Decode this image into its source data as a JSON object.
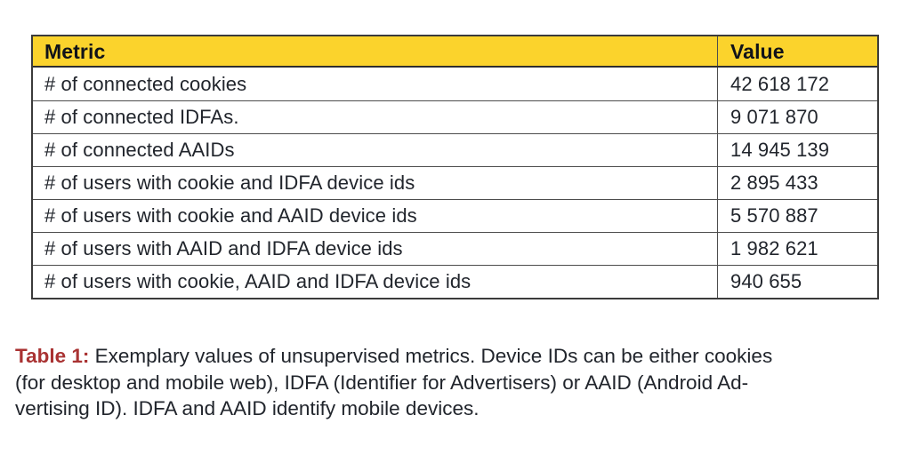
{
  "colors": {
    "header_bg": "#fbd32c",
    "caption_label": "#a93232",
    "body_text": "#21252c",
    "table_border": "#3b3b3b",
    "row_divider": "#4d4d4d"
  },
  "table": {
    "headers": [
      "Metric",
      "Value"
    ],
    "rows": [
      {
        "metric": "# of connected cookies",
        "value": "42 618 172"
      },
      {
        "metric": "# of connected IDFAs.",
        "value": "9 071 870"
      },
      {
        "metric": "# of connected AAIDs",
        "value": "14 945 139"
      },
      {
        "metric": "# of users with cookie and IDFA device ids",
        "value": "2 895 433"
      },
      {
        "metric": "# of users with cookie and AAID device ids",
        "value": "5 570 887"
      },
      {
        "metric": "# of users with AAID and IDFA device ids",
        "value": "1 982 621"
      },
      {
        "metric": "# of users with cookie, AAID and IDFA device ids",
        "value": "940 655"
      }
    ]
  },
  "caption": {
    "label": "Table 1:",
    "line1": " Exemplary values of unsupervised metrics. Device IDs can be either cookies",
    "line2": "(for desktop and mobile web), IDFA (Identifier for Advertisers) or AAID (Android Ad-",
    "line3": "vertising ID). IDFA and AAID identify mobile devices."
  }
}
